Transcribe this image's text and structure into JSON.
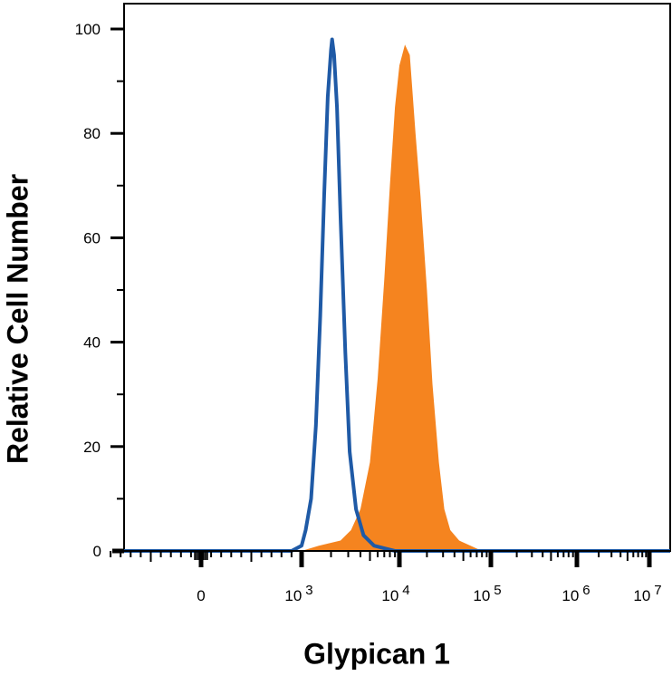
{
  "chart_data": {
    "type": "area",
    "xlabel": "Glypican 1",
    "ylabel": "Relative Cell Number",
    "xscale": "logicle",
    "ylim": [
      0,
      100
    ],
    "yticks": [
      0,
      20,
      40,
      60,
      80,
      100
    ],
    "xticks": [
      {
        "base": "0",
        "exp": "",
        "x": 0
      },
      {
        "base": "10",
        "exp": "3",
        "x": 1000
      },
      {
        "base": "10",
        "exp": "4",
        "x": 10000
      },
      {
        "base": "10",
        "exp": "5",
        "x": 100000
      },
      {
        "base": "10",
        "exp": "6",
        "x": 1000000
      },
      {
        "base": "10",
        "exp": "7",
        "x": 10000000
      }
    ],
    "grid": false,
    "legend": "none",
    "series": [
      {
        "style": "filled",
        "color": "#F5841F",
        "points": [
          [
            1000,
            0
          ],
          [
            1500,
            1
          ],
          [
            2500,
            2
          ],
          [
            3200,
            4
          ],
          [
            4000,
            8
          ],
          [
            5000,
            17
          ],
          [
            6000,
            33
          ],
          [
            7000,
            52
          ],
          [
            8000,
            70
          ],
          [
            9000,
            85
          ],
          [
            10000,
            93
          ],
          [
            11500,
            97
          ],
          [
            13000,
            95
          ],
          [
            15000,
            80
          ],
          [
            17000,
            68
          ],
          [
            20000,
            50
          ],
          [
            23000,
            32
          ],
          [
            27000,
            17
          ],
          [
            31000,
            8
          ],
          [
            36000,
            4
          ],
          [
            45000,
            2
          ],
          [
            60000,
            1
          ],
          [
            80000,
            0
          ]
        ]
      },
      {
        "style": "outline",
        "color": "#1F5AA6",
        "points": [
          [
            900,
            0
          ],
          [
            1000,
            1
          ],
          [
            1100,
            4
          ],
          [
            1250,
            10
          ],
          [
            1400,
            24
          ],
          [
            1550,
            45
          ],
          [
            1700,
            68
          ],
          [
            1850,
            87
          ],
          [
            2000,
            96
          ],
          [
            2050,
            98
          ],
          [
            2150,
            95
          ],
          [
            2300,
            85
          ],
          [
            2500,
            64
          ],
          [
            2800,
            38
          ],
          [
            3100,
            19
          ],
          [
            3600,
            8
          ],
          [
            4300,
            3
          ],
          [
            5500,
            1
          ],
          [
            7000,
            0.5
          ],
          [
            9000,
            0
          ]
        ]
      }
    ]
  }
}
